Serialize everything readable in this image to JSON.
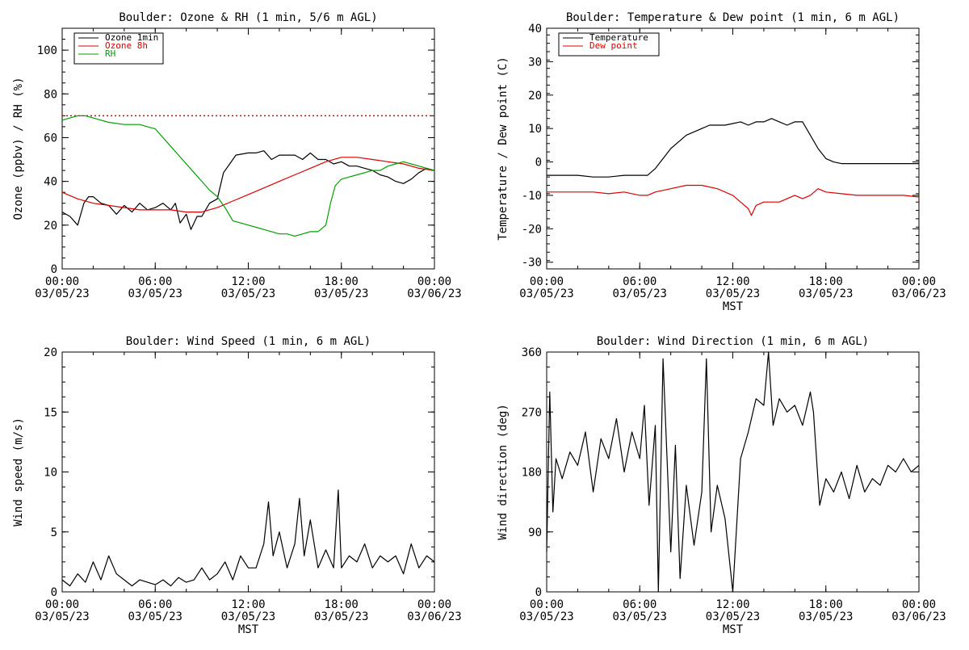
{
  "chart_data": [
    {
      "type": "line",
      "title": "Boulder: Ozone & RH (1 min, 5/6 m AGL)",
      "xlabel": "",
      "ylabel": "Ozone (ppbv) / RH (%)",
      "xlim": [
        0,
        24
      ],
      "ylim": [
        0,
        110
      ],
      "x_ticks": [
        {
          "value": 0,
          "time": "00:00",
          "date": "03/05/23"
        },
        {
          "value": 6,
          "time": "06:00",
          "date": "03/05/23"
        },
        {
          "value": 12,
          "time": "12:00",
          "date": "03/05/23"
        },
        {
          "value": 18,
          "time": "18:00",
          "date": "03/05/23"
        },
        {
          "value": 24,
          "time": "00:00",
          "date": "03/06/23"
        }
      ],
      "y_ticks": [
        0,
        20,
        40,
        60,
        80,
        100
      ],
      "reference_line": {
        "y": 70,
        "color": "#dd0000",
        "style": "dotted"
      },
      "legend_position": "top-left",
      "series": [
        {
          "name": "Ozone 1min",
          "color": "#000000",
          "x": [
            0,
            0.5,
            1,
            1.4,
            1.7,
            2,
            2.5,
            3,
            3.5,
            4,
            4.5,
            5,
            5.5,
            6,
            6.5,
            7,
            7.3,
            7.6,
            8,
            8.3,
            8.7,
            9,
            9.5,
            10,
            10.4,
            10.8,
            11.2,
            12,
            12.5,
            13,
            13.5,
            14,
            14.5,
            15,
            15.5,
            16,
            16.5,
            17,
            17.5,
            18,
            18.5,
            19,
            19.5,
            20,
            20.5,
            21,
            21.5,
            22,
            22.5,
            23,
            23.5,
            24
          ],
          "y": [
            26,
            24,
            20,
            30,
            33,
            33,
            30,
            29,
            25,
            29,
            26,
            30,
            27,
            28,
            30,
            27,
            30,
            21,
            25,
            18,
            24,
            24,
            30,
            32,
            44,
            48,
            52,
            53,
            53,
            54,
            50,
            52,
            52,
            52,
            50,
            53,
            50,
            50,
            48,
            49,
            47,
            47,
            46,
            45,
            43,
            42,
            40,
            39,
            41,
            44,
            46,
            45
          ]
        },
        {
          "name": "Ozone 8h",
          "color": "#dd0000",
          "x": [
            0,
            1,
            2,
            3,
            4,
            5,
            6,
            7,
            8,
            9,
            10,
            11,
            12,
            13,
            14,
            15,
            16,
            17,
            18,
            19,
            20,
            21,
            22,
            23,
            24
          ],
          "y": [
            35,
            32,
            30,
            29,
            28,
            27,
            27,
            27,
            26,
            26,
            28,
            31,
            34,
            37,
            40,
            43,
            46,
            49,
            51,
            51,
            50,
            49,
            48,
            46,
            45
          ]
        },
        {
          "name": "RH",
          "color": "#00a000",
          "x": [
            0,
            0.5,
            1,
            1.5,
            2,
            3,
            4,
            5,
            5.5,
            6,
            6.5,
            7,
            7.5,
            8,
            8.5,
            9,
            9.5,
            10,
            10.5,
            11,
            11.5,
            12,
            12.5,
            13,
            13.5,
            14,
            14.5,
            15,
            15.5,
            16,
            16.5,
            17,
            17.3,
            17.6,
            18,
            18.5,
            19,
            19.5,
            20,
            20.5,
            21,
            21.5,
            22,
            22.5,
            23,
            23.5,
            24
          ],
          "y": [
            68,
            69,
            70,
            70,
            69,
            67,
            66,
            66,
            65,
            64,
            60,
            56,
            52,
            48,
            44,
            40,
            36,
            33,
            28,
            22,
            21,
            20,
            19,
            18,
            17,
            16,
            16,
            15,
            16,
            17,
            17,
            20,
            30,
            38,
            41,
            42,
            43,
            44,
            45,
            45,
            47,
            48,
            49,
            48,
            47,
            46,
            45
          ]
        }
      ]
    },
    {
      "type": "line",
      "title": "Boulder: Temperature & Dew point (1 min, 6 m AGL)",
      "xlabel": "MST",
      "ylabel": "Temperature / Dew point (C)",
      "xlim": [
        0,
        24
      ],
      "ylim": [
        -32,
        40
      ],
      "x_ticks": [
        {
          "value": 0,
          "time": "00:00",
          "date": "03/05/23"
        },
        {
          "value": 6,
          "time": "06:00",
          "date": "03/05/23"
        },
        {
          "value": 12,
          "time": "12:00",
          "date": "03/05/23"
        },
        {
          "value": 18,
          "time": "18:00",
          "date": "03/05/23"
        },
        {
          "value": 24,
          "time": "00:00",
          "date": "03/06/23"
        }
      ],
      "y_ticks": [
        -30,
        -20,
        -10,
        0,
        10,
        20,
        30,
        40
      ],
      "legend_position": "top-left",
      "series": [
        {
          "name": "Temperature",
          "color": "#000000",
          "x": [
            0,
            1,
            2,
            3,
            4,
            5,
            6,
            6.5,
            7,
            7.5,
            8,
            8.5,
            9,
            9.5,
            10,
            10.5,
            11,
            11.5,
            12,
            12.5,
            13,
            13.5,
            14,
            14.5,
            15,
            15.5,
            16,
            16.5,
            17,
            17.5,
            18,
            18.5,
            19,
            20,
            21,
            22,
            23,
            24
          ],
          "y": [
            -4,
            -4,
            -4,
            -4.5,
            -4.5,
            -4,
            -4,
            -4,
            -2,
            1,
            4,
            6,
            8,
            9,
            10,
            11,
            11,
            11,
            11.5,
            12,
            11,
            12,
            12,
            13,
            12,
            11,
            12,
            12,
            8,
            4,
            1,
            0,
            -0.5,
            -0.5,
            -0.5,
            -0.5,
            -0.5,
            -0.5
          ]
        },
        {
          "name": "Dew point",
          "color": "#dd0000",
          "x": [
            0,
            1,
            2,
            3,
            4,
            5,
            6,
            6.5,
            7,
            8,
            9,
            10,
            11,
            12,
            12.5,
            13,
            13.2,
            13.5,
            14,
            15,
            15.5,
            16,
            16.5,
            17,
            17.5,
            18,
            19,
            20,
            21,
            22,
            23,
            24
          ],
          "y": [
            -9,
            -9,
            -9,
            -9,
            -9.5,
            -9,
            -10,
            -10,
            -9,
            -8,
            -7,
            -7,
            -8,
            -10,
            -12,
            -14,
            -16,
            -13,
            -12,
            -12,
            -11,
            -10,
            -11,
            -10,
            -8,
            -9,
            -9.5,
            -10,
            -10,
            -10,
            -10,
            -10.5
          ]
        }
      ]
    },
    {
      "type": "line",
      "title": "Boulder: Wind Speed (1 min, 6 m AGL)",
      "xlabel": "MST",
      "ylabel": "Wind speed (m/s)",
      "xlim": [
        0,
        24
      ],
      "ylim": [
        0,
        20
      ],
      "x_ticks": [
        {
          "value": 0,
          "time": "00:00",
          "date": "03/05/23"
        },
        {
          "value": 6,
          "time": "06:00",
          "date": "03/05/23"
        },
        {
          "value": 12,
          "time": "12:00",
          "date": "03/05/23"
        },
        {
          "value": 18,
          "time": "18:00",
          "date": "03/05/23"
        },
        {
          "value": 24,
          "time": "00:00",
          "date": "03/06/23"
        }
      ],
      "y_ticks": [
        0,
        5,
        10,
        15,
        20
      ],
      "series": [
        {
          "color": "#000000",
          "x": [
            0,
            0.5,
            1,
            1.5,
            2,
            2.5,
            3,
            3.5,
            4,
            4.5,
            5,
            5.5,
            6,
            6.5,
            7,
            7.5,
            8,
            8.5,
            9,
            9.5,
            10,
            10.5,
            11,
            11.5,
            12,
            12.5,
            13,
            13.3,
            13.6,
            14,
            14.5,
            15,
            15.3,
            15.6,
            16,
            16.5,
            17,
            17.5,
            17.8,
            18,
            18.5,
            19,
            19.5,
            20,
            20.5,
            21,
            21.5,
            22,
            22.5,
            23,
            23.5,
            24
          ],
          "y": [
            1,
            0.5,
            1.5,
            0.8,
            2.5,
            1,
            3,
            1.5,
            1,
            0.5,
            1,
            0.8,
            0.6,
            1,
            0.5,
            1.2,
            0.8,
            1,
            2,
            1,
            1.5,
            2.5,
            1,
            3,
            2,
            2,
            4,
            7.5,
            3,
            5,
            2,
            4,
            7.8,
            3,
            6,
            2,
            3.5,
            2,
            8.5,
            2,
            3,
            2.5,
            4,
            2,
            3,
            2.5,
            3,
            1.5,
            4,
            2,
            3,
            2.5
          ]
        }
      ]
    },
    {
      "type": "line",
      "title": "Boulder: Wind Direction (1 min, 6 m AGL)",
      "xlabel": "MST",
      "ylabel": "Wind direction (deg)",
      "xlim": [
        0,
        24
      ],
      "ylim": [
        0,
        360
      ],
      "x_ticks": [
        {
          "value": 0,
          "time": "00:00",
          "date": "03/05/23"
        },
        {
          "value": 6,
          "time": "06:00",
          "date": "03/05/23"
        },
        {
          "value": 12,
          "time": "12:00",
          "date": "03/05/23"
        },
        {
          "value": 18,
          "time": "18:00",
          "date": "03/05/23"
        },
        {
          "value": 24,
          "time": "00:00",
          "date": "03/06/23"
        }
      ],
      "y_ticks": [
        0,
        90,
        180,
        270,
        360
      ],
      "series": [
        {
          "color": "#000000",
          "x": [
            0,
            0.2,
            0.4,
            0.6,
            1,
            1.5,
            2,
            2.5,
            3,
            3.5,
            4,
            4.5,
            5,
            5.5,
            6,
            6.3,
            6.6,
            7,
            7.2,
            7.5,
            8,
            8.3,
            8.6,
            9,
            9.5,
            10,
            10.3,
            10.6,
            11,
            11.5,
            12,
            12.5,
            13,
            13.5,
            14,
            14.3,
            14.6,
            15,
            15.5,
            16,
            16.5,
            17,
            17.2,
            17.4,
            17.6,
            18,
            18.5,
            19,
            19.5,
            20,
            20.5,
            21,
            21.5,
            22,
            22.5,
            23,
            23.5,
            24
          ],
          "y": [
            60,
            300,
            120,
            200,
            170,
            210,
            190,
            240,
            150,
            230,
            200,
            260,
            180,
            240,
            200,
            280,
            130,
            250,
            0,
            350,
            60,
            220,
            20,
            160,
            70,
            150,
            350,
            90,
            160,
            110,
            0,
            200,
            240,
            290,
            280,
            360,
            250,
            290,
            270,
            280,
            250,
            300,
            270,
            200,
            130,
            170,
            150,
            180,
            140,
            190,
            150,
            170,
            160,
            190,
            180,
            200,
            180,
            190
          ]
        }
      ]
    }
  ]
}
